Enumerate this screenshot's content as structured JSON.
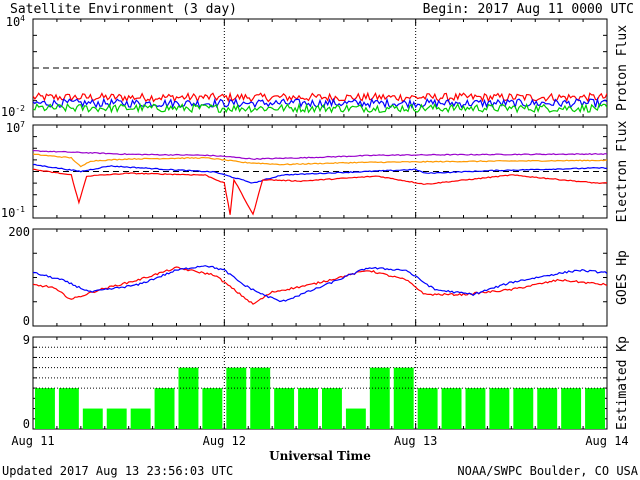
{
  "header": {
    "title": "Satellite Environment (3 day)",
    "begin": "Begin:  2017 Aug 11 0000 UTC"
  },
  "footer": {
    "updated": "Updated 2017 Aug 13 23:56:03 UTC",
    "credit": "NOAA/SWPC Boulder, CO USA"
  },
  "chart_data": [
    {
      "type": "line",
      "panel": "proton",
      "ylabel": "Proton Flux",
      "yscale": "log",
      "ylim": [
        0.01,
        10000
      ],
      "yticks": [
        {
          "label": "10",
          "exp": "4"
        },
        {
          "label": "10",
          "exp": "-2"
        }
      ],
      "threshold": 10,
      "series": [
        {
          "color": "#ff0000",
          "level": 0.16
        },
        {
          "color": "#0000ff",
          "level": 0.07
        },
        {
          "color": "#00cc00",
          "level": 0.035
        }
      ]
    },
    {
      "type": "line",
      "panel": "electron",
      "ylabel": "Electron Flux",
      "yscale": "log",
      "ylim": [
        0.1,
        10000000
      ],
      "yticks": [
        {
          "label": "10",
          "exp": "7"
        },
        {
          "label": "10",
          "exp": "-1"
        }
      ],
      "threshold": 1000,
      "series": [
        {
          "color": "#9900cc",
          "x": [
            0,
            0.3,
            0.5,
            0.9,
            1.0,
            1.15,
            1.4,
            1.8,
            2.2,
            2.6,
            2.95
          ],
          "y": [
            60000,
            40000,
            30000,
            25000,
            20000,
            12000,
            15000,
            25000,
            28000,
            30000,
            32000
          ]
        },
        {
          "color": "#ff9900",
          "x": [
            0,
            0.2,
            0.25,
            0.3,
            0.5,
            0.9,
            1.0,
            1.1,
            1.3,
            1.7,
            2.1,
            2.5,
            2.95
          ],
          "y": [
            30000,
            15000,
            2500,
            8000,
            12000,
            15000,
            10000,
            6000,
            4000,
            6000,
            7000,
            8000,
            9000
          ]
        },
        {
          "color": "#0000ff",
          "x": [
            0,
            0.25,
            0.4,
            0.7,
            0.95,
            1.05,
            1.15,
            1.3,
            1.6,
            2.0,
            2.05,
            2.4,
            2.95
          ],
          "y": [
            4000,
            1000,
            3000,
            1500,
            900,
            300,
            100,
            500,
            800,
            1500,
            700,
            1200,
            2000
          ]
        },
        {
          "color": "#ff0000",
          "x": [
            0,
            0.2,
            0.24,
            0.28,
            0.5,
            0.9,
            1.0,
            1.03,
            1.05,
            1.15,
            1.2,
            1.4,
            1.8,
            2.05,
            2.5,
            2.95
          ],
          "y": [
            1500,
            500,
            2,
            400,
            700,
            500,
            100,
            0.2,
            200,
            0.2,
            200,
            150,
            400,
            80,
            500,
            100
          ]
        }
      ]
    },
    {
      "type": "line",
      "panel": "hp",
      "ylabel": "GOES Hp",
      "yscale": "linear",
      "ylim": [
        0,
        200
      ],
      "yticks": [
        {
          "label": "200",
          "exp": ""
        },
        {
          "label": "0",
          "exp": ""
        }
      ],
      "series": [
        {
          "color": "#ff0000",
          "x": [
            0,
            0.1,
            0.2,
            0.35,
            0.55,
            0.75,
            0.95,
            1.05,
            1.15,
            1.25,
            1.45,
            1.75,
            1.95,
            2.05,
            2.25,
            2.5,
            2.75,
            3.0
          ],
          "y": [
            85,
            80,
            55,
            75,
            95,
            120,
            105,
            75,
            45,
            70,
            85,
            115,
            95,
            65,
            65,
            75,
            95,
            85
          ]
        },
        {
          "color": "#0000ff",
          "x": [
            0,
            0.15,
            0.3,
            0.55,
            0.75,
            0.9,
            1.0,
            1.1,
            1.2,
            1.3,
            1.5,
            1.75,
            1.95,
            2.1,
            2.3,
            2.5,
            2.7,
            2.85,
            3.0
          ],
          "y": [
            110,
            95,
            70,
            85,
            115,
            125,
            115,
            85,
            65,
            50,
            80,
            120,
            115,
            75,
            65,
            90,
            105,
            115,
            110
          ]
        }
      ]
    },
    {
      "type": "bar",
      "panel": "kp",
      "ylabel": "Estimated Kp",
      "ylim": [
        0,
        9
      ],
      "yticks": [
        {
          "label": "9",
          "exp": ""
        },
        {
          "label": "0",
          "exp": ""
        }
      ],
      "values": [
        4,
        4,
        2,
        2,
        2,
        4,
        6,
        4,
        6,
        6,
        4,
        4,
        4,
        2,
        6,
        6,
        4,
        4,
        4,
        4,
        4,
        4,
        4,
        4
      ],
      "bar_color": "#00ff00"
    }
  ],
  "xaxis": {
    "label": "Universal Time",
    "ticks": [
      "Aug 11",
      "Aug 12",
      "Aug 13",
      "Aug 14"
    ],
    "days": 3
  }
}
